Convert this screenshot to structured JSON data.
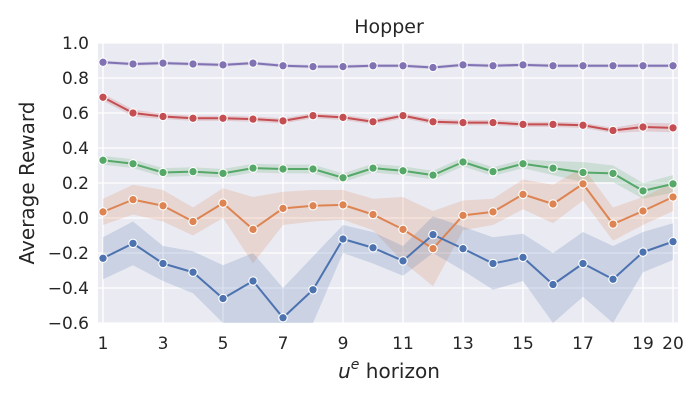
{
  "chart_data": {
    "type": "line",
    "title": "Hopper",
    "xlabel_base": "u",
    "xlabel_sup": "e",
    "xlabel_rest": " horizon",
    "ylabel": "Average Reward",
    "xlim": [
      1,
      20
    ],
    "ylim": [
      -0.6,
      1.0
    ],
    "xticks": [
      1,
      3,
      5,
      7,
      9,
      11,
      13,
      15,
      17,
      19,
      20
    ],
    "yticks": [
      "1.0",
      "0.8",
      "0.6",
      "0.4",
      "0.2",
      "0.0",
      "−0.2",
      "−0.4",
      "−0.6"
    ],
    "grid": true,
    "legend": "none",
    "x": [
      1,
      2,
      3,
      4,
      5,
      6,
      7,
      8,
      9,
      10,
      11,
      12,
      13,
      14,
      15,
      16,
      17,
      18,
      19,
      20
    ],
    "series": [
      {
        "color": "#8172b3",
        "values": [
          0.89,
          0.88,
          0.885,
          0.88,
          0.875,
          0.885,
          0.87,
          0.865,
          0.865,
          0.87,
          0.87,
          0.86,
          0.875,
          0.87,
          0.875,
          0.87,
          0.87,
          0.87,
          0.87,
          0.87
        ],
        "lower": [
          0.88,
          0.87,
          0.875,
          0.87,
          0.865,
          0.875,
          0.86,
          0.855,
          0.855,
          0.86,
          0.86,
          0.85,
          0.865,
          0.86,
          0.865,
          0.86,
          0.86,
          0.86,
          0.86,
          0.86
        ],
        "upper": [
          0.9,
          0.89,
          0.895,
          0.89,
          0.885,
          0.895,
          0.88,
          0.875,
          0.875,
          0.88,
          0.88,
          0.87,
          0.885,
          0.88,
          0.885,
          0.88,
          0.88,
          0.88,
          0.88,
          0.88
        ]
      },
      {
        "color": "#c44e52",
        "values": [
          0.69,
          0.6,
          0.58,
          0.57,
          0.57,
          0.565,
          0.555,
          0.585,
          0.575,
          0.55,
          0.585,
          0.55,
          0.545,
          0.545,
          0.535,
          0.535,
          0.53,
          0.5,
          0.52,
          0.515
        ],
        "lower": [
          0.67,
          0.58,
          0.565,
          0.555,
          0.555,
          0.55,
          0.54,
          0.57,
          0.56,
          0.535,
          0.57,
          0.535,
          0.53,
          0.53,
          0.52,
          0.52,
          0.515,
          0.485,
          0.495,
          0.49
        ],
        "upper": [
          0.71,
          0.62,
          0.595,
          0.585,
          0.585,
          0.58,
          0.57,
          0.6,
          0.59,
          0.565,
          0.6,
          0.565,
          0.56,
          0.56,
          0.55,
          0.55,
          0.545,
          0.515,
          0.545,
          0.54
        ]
      },
      {
        "color": "#55a868",
        "values": [
          0.33,
          0.31,
          0.26,
          0.265,
          0.255,
          0.285,
          0.28,
          0.28,
          0.23,
          0.285,
          0.27,
          0.245,
          0.32,
          0.265,
          0.31,
          0.285,
          0.26,
          0.255,
          0.155,
          0.195
        ],
        "lower": [
          0.305,
          0.285,
          0.235,
          0.24,
          0.23,
          0.26,
          0.255,
          0.255,
          0.205,
          0.26,
          0.245,
          0.22,
          0.295,
          0.24,
          0.285,
          0.245,
          0.205,
          0.205,
          0.11,
          0.145
        ],
        "upper": [
          0.355,
          0.335,
          0.285,
          0.29,
          0.28,
          0.31,
          0.305,
          0.305,
          0.255,
          0.31,
          0.295,
          0.27,
          0.345,
          0.29,
          0.335,
          0.325,
          0.32,
          0.3,
          0.2,
          0.245
        ]
      },
      {
        "color": "#dd8452",
        "values": [
          0.035,
          0.105,
          0.07,
          -0.02,
          0.085,
          -0.065,
          0.055,
          0.07,
          0.075,
          0.02,
          -0.065,
          -0.175,
          0.015,
          0.035,
          0.135,
          0.08,
          0.195,
          -0.035,
          0.04,
          0.12
        ],
        "lower": [
          -0.04,
          0.02,
          -0.02,
          -0.1,
          0.0,
          -0.26,
          -0.04,
          -0.02,
          -0.01,
          -0.07,
          -0.25,
          -0.39,
          -0.07,
          -0.04,
          0.05,
          -0.03,
          0.1,
          -0.13,
          -0.04,
          0.04
        ],
        "upper": [
          0.11,
          0.19,
          0.16,
          0.06,
          0.17,
          0.12,
          0.15,
          0.16,
          0.16,
          0.11,
          0.12,
          0.04,
          0.1,
          0.11,
          0.22,
          0.19,
          0.29,
          0.06,
          0.12,
          0.2
        ]
      },
      {
        "color": "#4c72b0",
        "values": [
          -0.23,
          -0.145,
          -0.26,
          -0.31,
          -0.46,
          -0.36,
          -0.57,
          -0.41,
          -0.12,
          -0.17,
          -0.245,
          -0.095,
          -0.175,
          -0.26,
          -0.225,
          -0.38,
          -0.26,
          -0.35,
          -0.195,
          -0.135
        ],
        "lower": [
          -0.35,
          -0.27,
          -0.36,
          -0.43,
          -0.6,
          -0.6,
          -0.6,
          -0.6,
          -0.2,
          -0.26,
          -0.33,
          -0.2,
          -0.3,
          -0.41,
          -0.36,
          -0.6,
          -0.45,
          -0.6,
          -0.31,
          -0.24
        ],
        "upper": [
          -0.11,
          -0.02,
          -0.16,
          -0.19,
          -0.27,
          -0.2,
          -0.4,
          -0.22,
          -0.04,
          -0.08,
          -0.16,
          0.01,
          -0.05,
          -0.11,
          -0.09,
          -0.2,
          -0.08,
          -0.16,
          -0.08,
          -0.03
        ]
      }
    ]
  }
}
